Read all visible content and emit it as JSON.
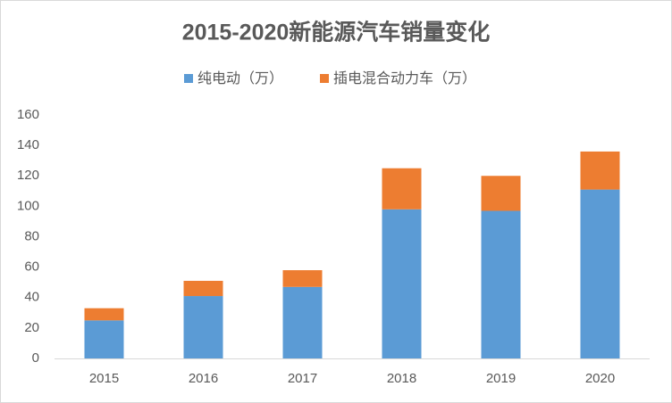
{
  "chart_data": {
    "type": "stacked_bar",
    "title": "2015-2020新能源汽车销量变化",
    "categories": [
      "2015",
      "2016",
      "2017",
      "2018",
      "2019",
      "2020"
    ],
    "series": [
      {
        "name": "纯电动（万）",
        "color": "#5b9bd5",
        "values": [
          25,
          41,
          47,
          98,
          97,
          111
        ]
      },
      {
        "name": "插电混合动力车（万）",
        "color": "#ed7d31",
        "values": [
          8,
          10,
          11,
          27,
          23,
          25
        ]
      }
    ],
    "ylim": [
      0,
      160
    ],
    "yticks": [
      0,
      20,
      40,
      60,
      80,
      100,
      120,
      140,
      160
    ],
    "grid": false,
    "legend": "top"
  }
}
